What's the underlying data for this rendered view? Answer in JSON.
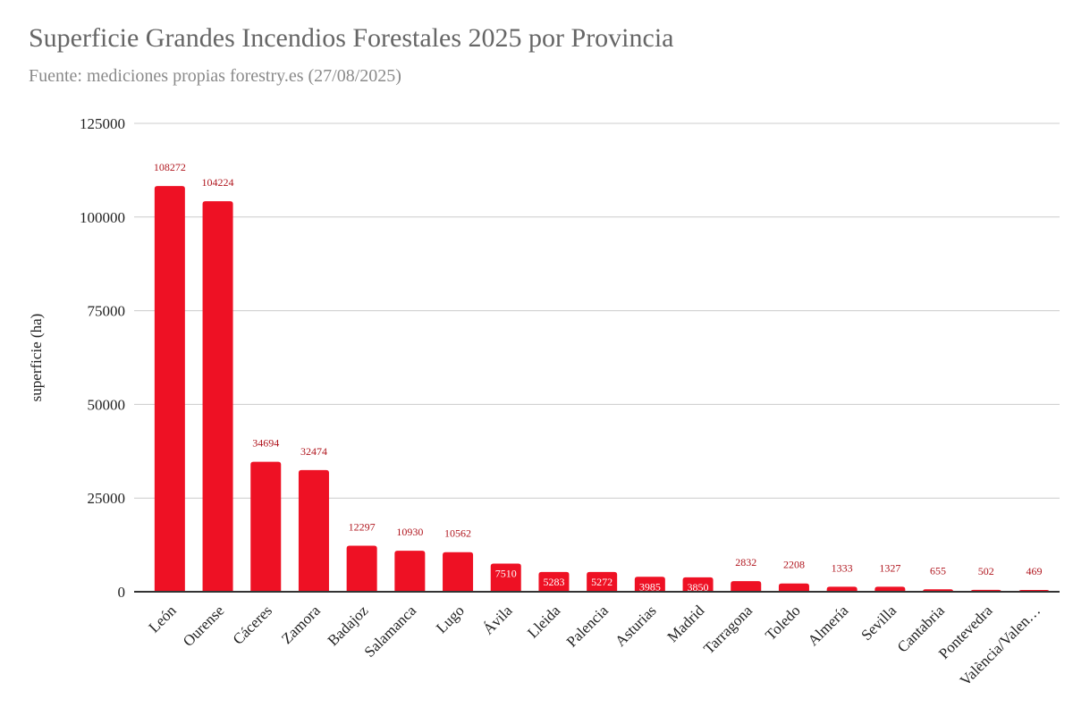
{
  "chart_data": {
    "type": "bar",
    "title": "Superficie Grandes Incendios Forestales 2025 por Provincia",
    "subtitle": "Fuente: mediciones propias forestry.es (27/08/2025)",
    "xlabel": "",
    "ylabel": "superficie (ha)",
    "ylim": [
      0,
      125000
    ],
    "yticks": [
      0,
      25000,
      50000,
      75000,
      100000,
      125000
    ],
    "grid": true,
    "categories": [
      "León",
      "Ourense",
      "Cáceres",
      "Zamora",
      "Badajoz",
      "Salamanca",
      "Lugo",
      "Ávila",
      "Lleida",
      "Palencia",
      "Asturias",
      "Madrid",
      "Tarragona",
      "Toledo",
      "Almería",
      "Sevilla",
      "Cantabria",
      "Pontevedra",
      "València/Valen…"
    ],
    "values": [
      108272,
      104224,
      34694,
      32474,
      12297,
      10930,
      10562,
      7510,
      5283,
      5272,
      3985,
      3850,
      2832,
      2208,
      1333,
      1327,
      655,
      502,
      469
    ],
    "colors": {
      "bar": "#ee1124",
      "data_label": "#b0161e",
      "data_label_inside": "#ffffff",
      "grid": "#cccccc",
      "axis": "#333333"
    }
  }
}
